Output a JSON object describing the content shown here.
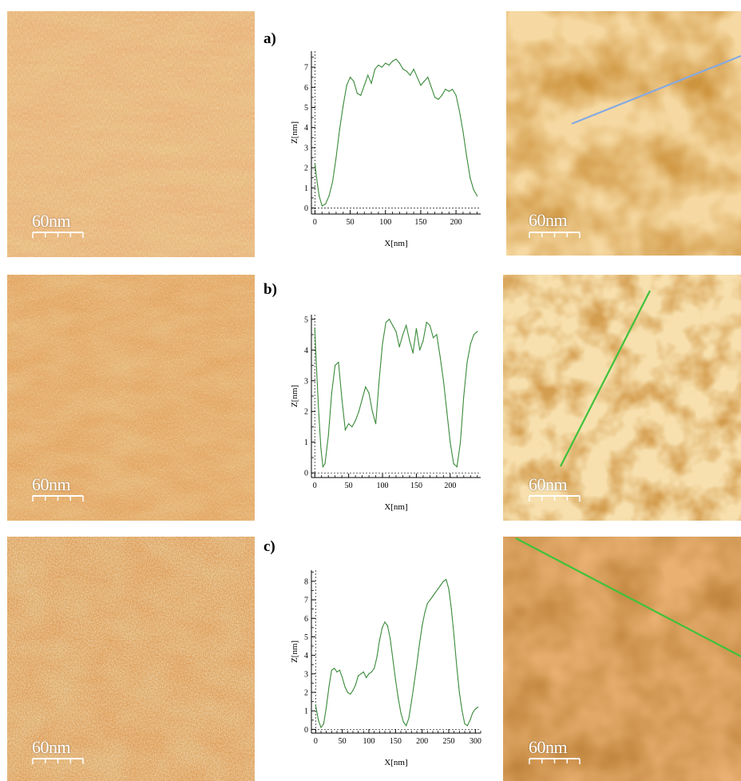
{
  "rows": [
    {
      "label": "a)",
      "left_scale": "60nm",
      "right_scale": "60nm",
      "line_color": "#86a9e0"
    },
    {
      "label": "b)",
      "left_scale": "60nm",
      "right_scale": "60nm",
      "line_color": "#3fc23a"
    },
    {
      "label": "c)",
      "left_scale": "60nm",
      "right_scale": "60nm",
      "line_color": "#3fc23a"
    }
  ],
  "chart_data": [
    {
      "type": "line",
      "xlabel": "X[nm]",
      "ylabel": "Z[nm]",
      "xlim": [
        -5,
        235
      ],
      "ylim": [
        -0.3,
        7.8
      ],
      "xticks": [
        0,
        50,
        100,
        150,
        200
      ],
      "yticks": [
        0,
        1,
        2,
        3,
        4,
        5,
        6,
        7
      ],
      "series_color": "#3a8a3a",
      "x": [
        0,
        3,
        6,
        10,
        15,
        20,
        25,
        30,
        35,
        40,
        45,
        50,
        55,
        60,
        65,
        70,
        75,
        80,
        85,
        90,
        95,
        100,
        105,
        110,
        115,
        120,
        125,
        130,
        135,
        140,
        145,
        150,
        155,
        160,
        165,
        170,
        175,
        180,
        185,
        190,
        195,
        200,
        205,
        210,
        215,
        220,
        225,
        230
      ],
      "y": [
        2.2,
        1.3,
        0.6,
        0.1,
        0.2,
        0.6,
        1.3,
        2.5,
        3.9,
        5.1,
        6.1,
        6.5,
        6.3,
        5.7,
        5.6,
        6.1,
        6.6,
        6.2,
        6.9,
        7.1,
        7.0,
        7.2,
        7.1,
        7.3,
        7.4,
        7.2,
        6.9,
        6.8,
        6.6,
        6.9,
        6.5,
        6.1,
        6.3,
        6.5,
        6.0,
        5.5,
        5.4,
        5.6,
        5.9,
        5.8,
        5.9,
        5.6,
        4.8,
        3.8,
        2.6,
        1.5,
        0.9,
        0.6
      ]
    },
    {
      "type": "line",
      "xlabel": "X[nm]",
      "ylabel": "Z[nm]",
      "xlim": [
        -5,
        245
      ],
      "ylim": [
        -0.15,
        5.15
      ],
      "xticks": [
        0,
        50,
        100,
        150,
        200
      ],
      "yticks": [
        0,
        1,
        2,
        3,
        4,
        5
      ],
      "series_color": "#3a8a3a",
      "x": [
        0,
        3,
        6,
        9,
        12,
        15,
        20,
        25,
        30,
        35,
        40,
        45,
        50,
        55,
        60,
        65,
        70,
        75,
        80,
        85,
        90,
        95,
        100,
        105,
        110,
        115,
        120,
        125,
        130,
        135,
        140,
        145,
        150,
        155,
        160,
        165,
        170,
        175,
        180,
        185,
        190,
        195,
        200,
        205,
        210,
        215,
        220,
        225,
        230,
        235,
        240
      ],
      "y": [
        4.7,
        3.2,
        1.9,
        0.8,
        0.2,
        0.3,
        1.2,
        2.6,
        3.5,
        3.6,
        2.4,
        1.4,
        1.6,
        1.5,
        1.7,
        2.0,
        2.4,
        2.8,
        2.6,
        2.0,
        1.6,
        3.0,
        4.2,
        4.9,
        5.0,
        4.8,
        4.6,
        4.1,
        4.5,
        4.8,
        4.3,
        3.9,
        4.7,
        4.0,
        4.3,
        4.9,
        4.8,
        4.4,
        4.5,
        3.8,
        3.0,
        2.0,
        1.0,
        0.3,
        0.2,
        1.0,
        2.5,
        3.6,
        4.2,
        4.5,
        4.6
      ]
    },
    {
      "type": "line",
      "xlabel": "X[nm]",
      "ylabel": "Z[nm]",
      "xlim": [
        -8,
        310
      ],
      "ylim": [
        -0.2,
        8.6
      ],
      "xticks": [
        0,
        50,
        100,
        150,
        200,
        250,
        300
      ],
      "yticks": [
        0,
        1,
        2,
        3,
        4,
        5,
        6,
        7,
        8
      ],
      "series_color": "#3a8a3a",
      "x": [
        0,
        5,
        10,
        15,
        20,
        25,
        30,
        35,
        40,
        45,
        50,
        55,
        60,
        65,
        70,
        75,
        80,
        85,
        90,
        95,
        100,
        105,
        110,
        115,
        120,
        125,
        130,
        135,
        140,
        145,
        150,
        155,
        160,
        165,
        170,
        175,
        180,
        185,
        190,
        195,
        200,
        205,
        210,
        215,
        220,
        225,
        230,
        235,
        240,
        245,
        250,
        255,
        260,
        265,
        270,
        275,
        280,
        285,
        290,
        295,
        300,
        305
      ],
      "y": [
        1.3,
        0.5,
        0.1,
        0.3,
        1.2,
        2.3,
        3.2,
        3.3,
        3.1,
        3.2,
        2.8,
        2.3,
        2.0,
        1.9,
        2.1,
        2.4,
        2.9,
        3.0,
        3.1,
        2.8,
        3.0,
        3.1,
        3.3,
        3.9,
        4.8,
        5.5,
        5.8,
        5.6,
        4.9,
        3.8,
        2.7,
        1.7,
        0.9,
        0.4,
        0.2,
        0.6,
        1.5,
        2.5,
        3.5,
        4.6,
        5.6,
        6.3,
        6.8,
        7.0,
        7.2,
        7.4,
        7.6,
        7.8,
        8.0,
        8.1,
        7.6,
        6.5,
        5.0,
        3.4,
        2.0,
        1.0,
        0.3,
        0.2,
        0.5,
        0.9,
        1.1,
        1.2
      ]
    }
  ]
}
